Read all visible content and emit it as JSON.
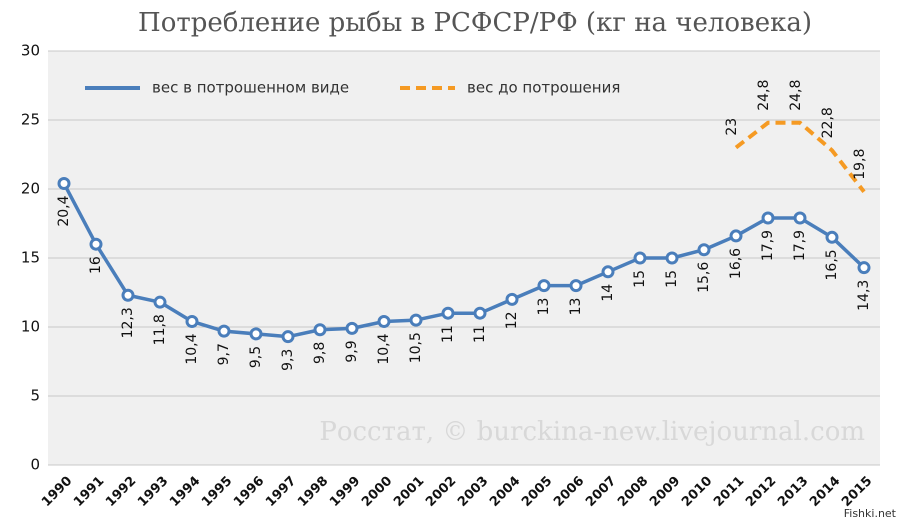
{
  "chart_data": {
    "type": "line",
    "title": "Потребление рыбы в РСФСР/РФ (кг на человека)",
    "categories": [
      "1990",
      "1991",
      "1992",
      "1993",
      "1994",
      "1995",
      "1996",
      "1997",
      "1998",
      "1999",
      "2000",
      "2001",
      "2002",
      "2003",
      "2004",
      "2005",
      "2006",
      "2007",
      "2008",
      "2009",
      "2010",
      "2011",
      "2012",
      "2013",
      "2014",
      "2015"
    ],
    "series": [
      {
        "name": "вес в потрошенном виде",
        "color": "#4a7ebb",
        "values": [
          20.4,
          16,
          12.3,
          11.8,
          10.4,
          9.7,
          9.5,
          9.3,
          9.8,
          9.9,
          10.4,
          10.5,
          11,
          11,
          12,
          13,
          13,
          14,
          15,
          15,
          15.6,
          16.6,
          17.9,
          17.9,
          16.5,
          14.3
        ],
        "value_labels": [
          "20,4",
          "16",
          "12,3",
          "11,8",
          "10,4",
          "9,7",
          "9,5",
          "9,3",
          "9,8",
          "9,9",
          "10,4",
          "10,5",
          "11",
          "11",
          "12",
          "13",
          "13",
          "14",
          "15",
          "15",
          "15,6",
          "16,6",
          "17,9",
          "17,9",
          "16,5",
          "14,3"
        ]
      },
      {
        "name": "вес до потрошения",
        "color": "#f59a23",
        "dashed": true,
        "values": [
          null,
          null,
          null,
          null,
          null,
          null,
          null,
          null,
          null,
          null,
          null,
          null,
          null,
          null,
          null,
          null,
          null,
          null,
          null,
          null,
          null,
          23,
          24.8,
          24.8,
          22.8,
          19.8
        ],
        "value_labels": [
          null,
          null,
          null,
          null,
          null,
          null,
          null,
          null,
          null,
          null,
          null,
          null,
          null,
          null,
          null,
          null,
          null,
          null,
          null,
          null,
          null,
          "23",
          "24,8",
          "24,8",
          "22,8",
          "19,8"
        ]
      }
    ],
    "ylim": [
      0,
      30
    ],
    "yticks": [
      0,
      5,
      10,
      15,
      20,
      25,
      30
    ],
    "grid": true,
    "legend": "top",
    "annotations": [
      "Росстат, © burckina-new.livejournal.com",
      "Fishki.net"
    ]
  }
}
